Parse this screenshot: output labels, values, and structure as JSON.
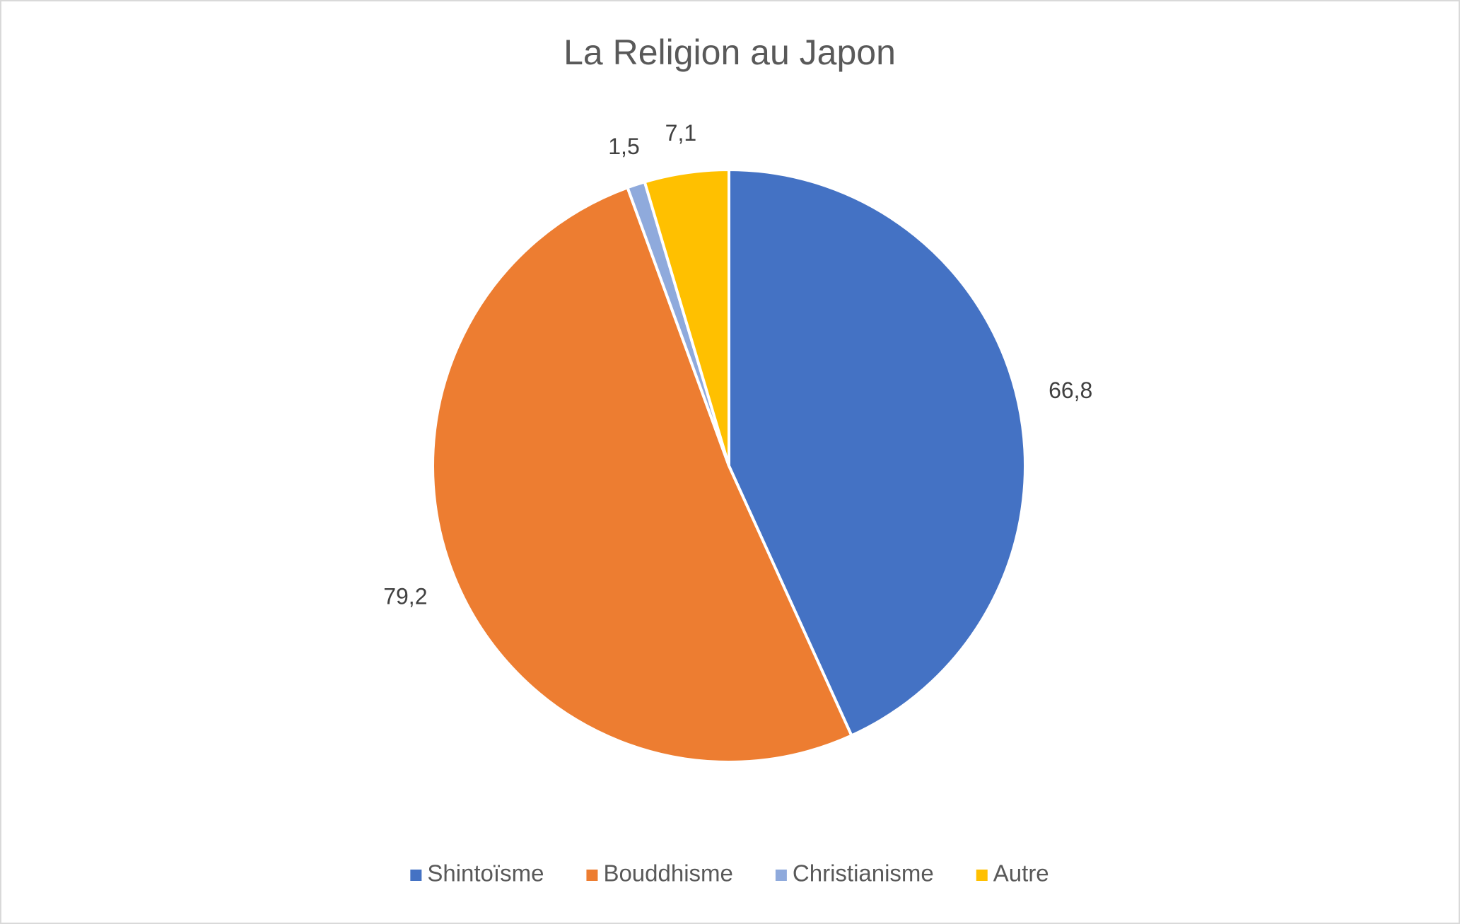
{
  "chart_data": {
    "type": "pie",
    "title": "La Religion au Japon",
    "categories": [
      "Shintoïsme",
      "Bouddhisme",
      "Christianisme",
      "Autre"
    ],
    "values": [
      66.8,
      79.2,
      1.5,
      7.1
    ],
    "value_labels": [
      "66,8",
      "79,2",
      "1,5",
      "7,1"
    ],
    "colors": [
      "#4472c4",
      "#ed7d31",
      "#8faadc",
      "#ffc000"
    ],
    "legend": "bottom"
  }
}
